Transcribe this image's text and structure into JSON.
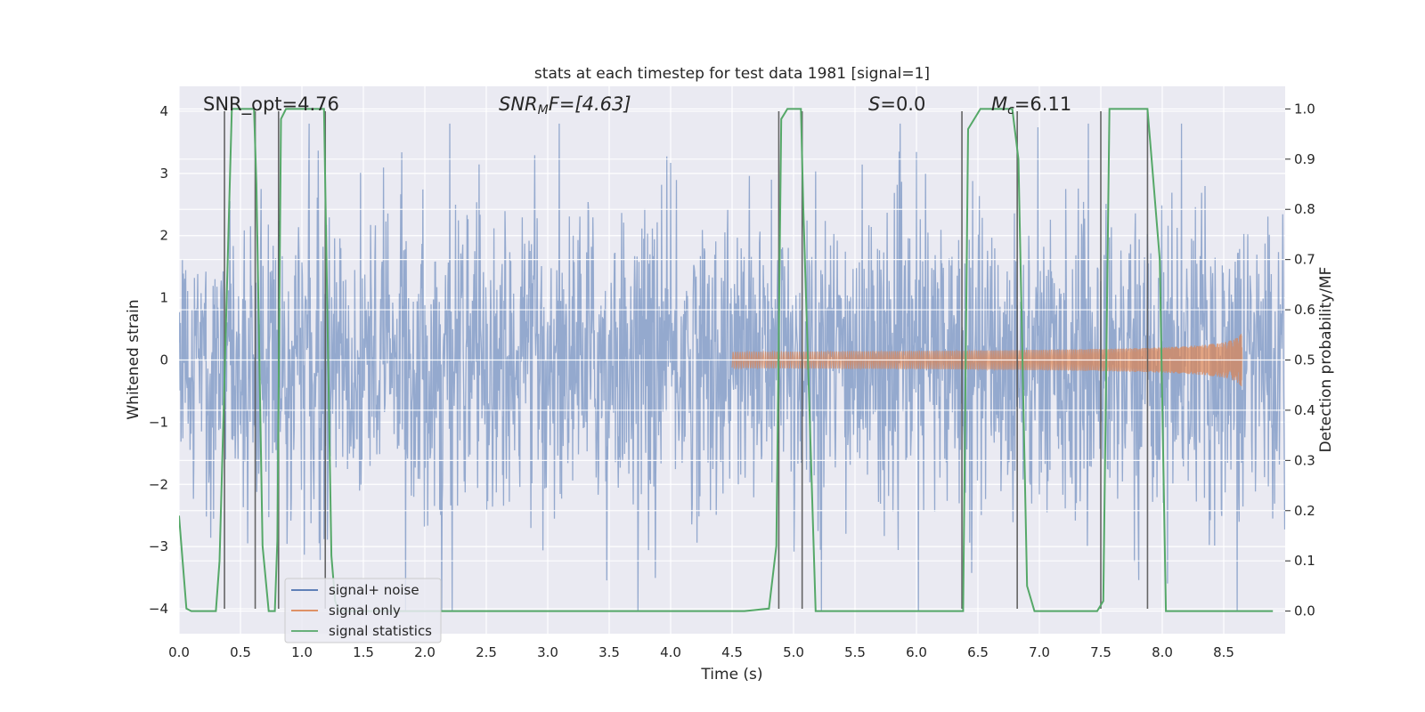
{
  "chart_data": {
    "type": "line",
    "title": "stats at each timestep for test data 1981 [signal=1]",
    "xlabel": "Time (s)",
    "ylabel_left": "Whitened strain",
    "ylabel_right": "Detection probability/MF",
    "xlim": [
      0.0,
      9.0
    ],
    "ylim_left": [
      -4.4,
      4.4
    ],
    "ylim_right": [
      -0.045,
      1.045
    ],
    "x_ticks": [
      "0.0",
      "0.5",
      "1.0",
      "1.5",
      "2.0",
      "2.5",
      "3.0",
      "3.5",
      "4.0",
      "4.5",
      "5.0",
      "5.5",
      "6.0",
      "6.5",
      "7.0",
      "7.5",
      "8.0",
      "8.5"
    ],
    "y_ticks_left": [
      "−4",
      "−3",
      "−2",
      "−1",
      "0",
      "1",
      "2",
      "3",
      "4"
    ],
    "y_ticks_right": [
      "0.0",
      "0.1",
      "0.2",
      "0.3",
      "0.4",
      "0.5",
      "0.6",
      "0.7",
      "0.8",
      "0.9",
      "1.0"
    ],
    "grid": true,
    "background": "#eaeaf2",
    "legend_position": "lower-left",
    "series": [
      {
        "name": "signal+ noise",
        "axis": "left",
        "color": "#4c72b0",
        "note_values": "dense noisy strain filling roughly -2.4..2.4 with spikes to about ±3.7",
        "sample_rate_hz": 256,
        "amplitude_envelope": 1.6
      },
      {
        "name": "signal only",
        "axis": "left",
        "color": "#dd8452",
        "chirp": {
          "start": 4.5,
          "end": 8.65,
          "peak_amplitude": 0.5
        }
      },
      {
        "name": "signal statistics",
        "axis": "right",
        "color": "#55a868",
        "x": [
          0.0,
          0.06,
          0.1,
          0.3,
          0.33,
          0.43,
          0.45,
          0.61,
          0.63,
          0.68,
          0.73,
          0.78,
          0.8,
          0.83,
          0.87,
          0.93,
          1.18,
          1.24,
          1.27,
          1.3,
          4.6,
          4.8,
          4.86,
          4.9,
          4.95,
          5.06,
          5.08,
          5.18,
          5.22,
          6.38,
          6.42,
          6.52,
          6.78,
          6.83,
          6.9,
          6.96,
          7.47,
          7.52,
          7.57,
          7.88,
          7.9,
          7.98,
          8.03,
          8.9
        ],
        "y": [
          0.19,
          0.005,
          0.0,
          0.0,
          0.1,
          1.0,
          1.0,
          1.0,
          0.85,
          0.13,
          0.0,
          0.0,
          0.14,
          0.98,
          1.0,
          1.0,
          1.0,
          0.11,
          0.02,
          0.0,
          0.0,
          0.005,
          0.13,
          0.98,
          1.0,
          1.0,
          0.8,
          0.0,
          0.0,
          0.0,
          0.96,
          1.0,
          1.0,
          0.9,
          0.05,
          0.0,
          0.0,
          0.02,
          1.0,
          1.0,
          0.94,
          0.7,
          0.0,
          0.0
        ]
      }
    ],
    "vertical_lines_x": [
      0.37,
      0.62,
      0.81,
      1.19,
      4.88,
      5.07,
      6.37,
      6.82,
      7.5,
      7.88
    ],
    "vertical_lines_color": "#555555",
    "annotations": {
      "snr_opt": "SNR_opt=4.76",
      "snr_mf_var": "SNR",
      "snr_mf_sub": "M",
      "snr_mf_rest": "F=[4.63]",
      "s_var": "S",
      "s_rest": "=0.0",
      "mc_var": "M",
      "mc_sub": "c",
      "mc_rest": "=6.11"
    }
  }
}
